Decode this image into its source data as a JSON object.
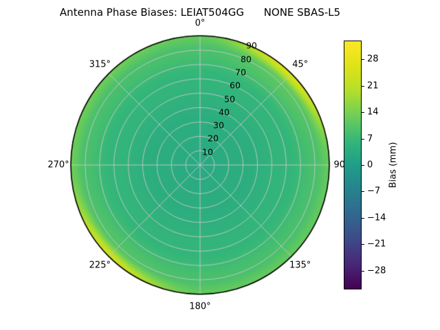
{
  "title": "Antenna Phase Biases: LEIAT504GG      NONE SBAS-L5",
  "chart_data": {
    "type": "heatmap",
    "projection": "polar",
    "title": "Antenna Phase Biases: LEIAT504GG      NONE SBAS-L5",
    "angular_ticks": [
      {
        "value": 0,
        "label": "0°"
      },
      {
        "value": 45,
        "label": "45°"
      },
      {
        "value": 90,
        "label": "90°"
      },
      {
        "value": 135,
        "label": "135°"
      },
      {
        "value": 180,
        "label": "180°"
      },
      {
        "value": 225,
        "label": "225°"
      },
      {
        "value": 270,
        "label": "270°"
      },
      {
        "value": 315,
        "label": "315°"
      }
    ],
    "radial_ticks": [
      10,
      20,
      30,
      40,
      50,
      60,
      70,
      80,
      90
    ],
    "radial_max": 90,
    "radial_label_azimuth_deg": 22.5,
    "grid_on": true,
    "grid_color": "#c8c8c8",
    "outline_color": "#000000",
    "background_color": "#ffffff",
    "colormap": {
      "name": "viridis",
      "stops": [
        [
          0.0,
          "#440154"
        ],
        [
          0.1,
          "#482878"
        ],
        [
          0.2,
          "#3e4a89"
        ],
        [
          0.3,
          "#31688e"
        ],
        [
          0.4,
          "#26828e"
        ],
        [
          0.5,
          "#1f9e89"
        ],
        [
          0.6,
          "#35b779"
        ],
        [
          0.7,
          "#6ece58"
        ],
        [
          0.8,
          "#b5de2b"
        ],
        [
          0.9,
          "#dfe318"
        ],
        [
          1.0,
          "#fde725"
        ]
      ]
    },
    "colorbar": {
      "label": "Bias (mm)",
      "ticks": [
        28,
        21,
        14,
        7,
        0,
        -7,
        -14,
        -21,
        -28
      ],
      "vmin": -33,
      "vmax": 33
    },
    "field": {
      "azimuth_deg": [
        0,
        45,
        90,
        135,
        180,
        225,
        270,
        315
      ],
      "zenith_deg": [
        0,
        30,
        60,
        80,
        90
      ],
      "bias_mm": [
        [
          3,
          4,
          6,
          9,
          12
        ],
        [
          3,
          4,
          6,
          11,
          26
        ],
        [
          3,
          4,
          6,
          9,
          12
        ],
        [
          3,
          4,
          6,
          9,
          12
        ],
        [
          3,
          4,
          6,
          9,
          12
        ],
        [
          3,
          4,
          6,
          10,
          24
        ],
        [
          3,
          4,
          6,
          9,
          13
        ],
        [
          3,
          4,
          6,
          9,
          13
        ]
      ]
    }
  }
}
